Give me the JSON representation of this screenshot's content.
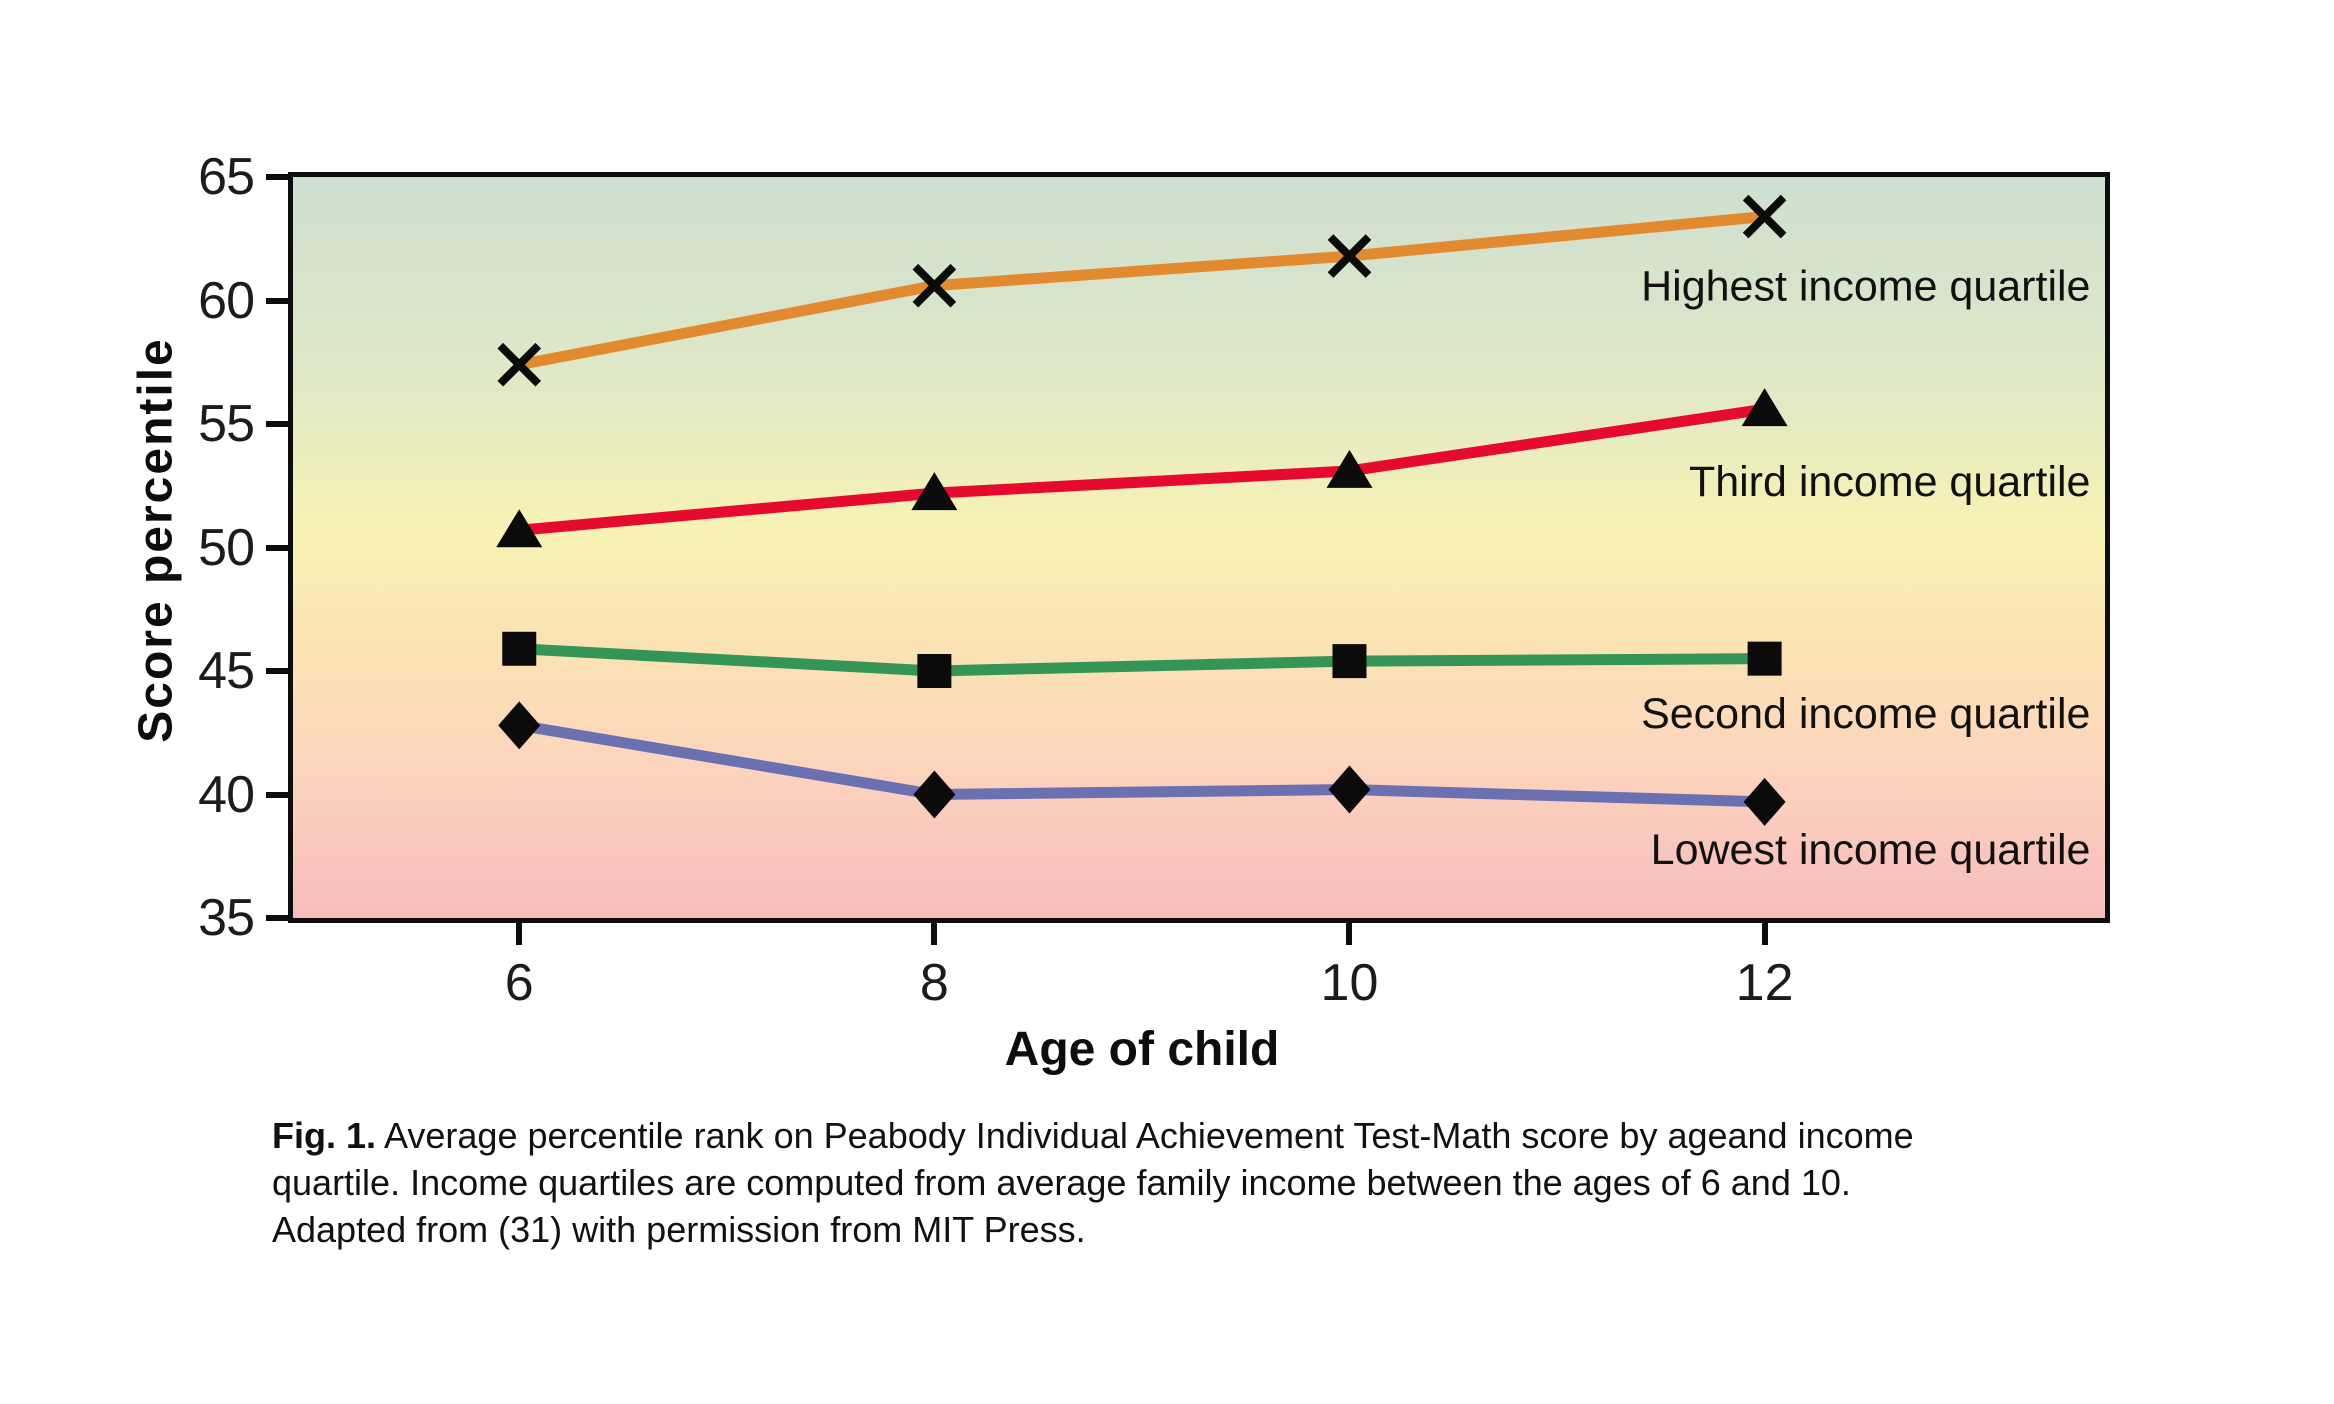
{
  "chart_data": {
    "type": "line",
    "x": [
      6,
      8,
      10,
      12
    ],
    "xticks": [
      6,
      8,
      10,
      12
    ],
    "yticks": [
      65,
      60,
      55,
      50,
      45,
      40,
      35
    ],
    "xlim": [
      4.91,
      13.64
    ],
    "ylim": [
      35,
      65
    ],
    "xlabel": "Age of child",
    "ylabel": "Score percentile",
    "grid": false,
    "legend_position": "inline-right",
    "background_gradient": [
      "#cfdfd0",
      "#d9e5ca",
      "#e2e9c4",
      "#f8f3b4",
      "#fbe3b3",
      "#fcd6bd",
      "#f7bcbd"
    ],
    "marker_color": "#0b0b0b",
    "series": [
      {
        "name": "Highest income quartile",
        "marker": "x",
        "color": "#e28a30",
        "values": [
          57.4,
          60.6,
          61.8,
          63.4
        ],
        "label": {
          "text": "Highest income quartile",
          "x": 13.57,
          "y": 60.6
        }
      },
      {
        "name": "Third income quartile",
        "marker": "triangle",
        "color": "#e60a2e",
        "values": [
          50.7,
          52.2,
          53.1,
          55.6
        ],
        "label": {
          "text": "Third income quartile",
          "x": 13.57,
          "y": 52.7
        }
      },
      {
        "name": "Second income quartile",
        "marker": "square",
        "color": "#359556",
        "values": [
          45.9,
          45.0,
          45.4,
          45.5
        ],
        "label": {
          "text": "Second income quartile",
          "x": 13.57,
          "y": 43.3
        }
      },
      {
        "name": "Lowest income quartile",
        "marker": "diamond",
        "color": "#6b70b1",
        "values": [
          42.8,
          40.0,
          40.2,
          39.7
        ],
        "label": {
          "text": "Lowest income quartile",
          "x": 13.57,
          "y": 37.8
        }
      }
    ]
  },
  "caption": {
    "bold": "Fig. 1.",
    "lines": [
      "Average percentile rank on Peabody Individual Achievement Test-Math score by ageand income",
      "quartile. Income quartiles are computed from average family income between the ages of 6 and 10.",
      "Adapted from (31) with permission from MIT Press."
    ]
  }
}
